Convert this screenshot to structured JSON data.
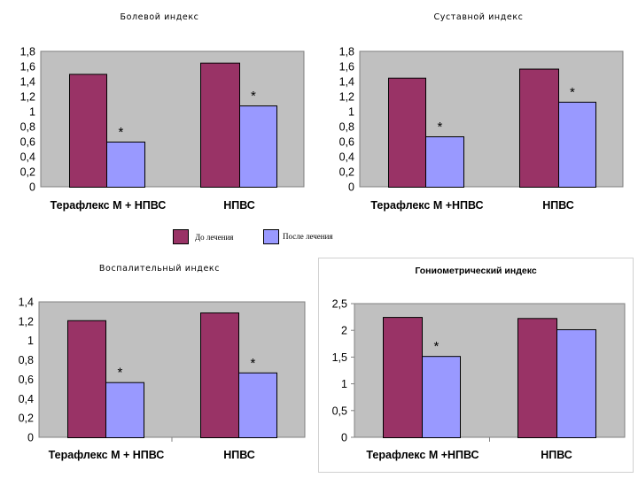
{
  "colors": {
    "before": "#993366",
    "after": "#9999ff",
    "plot_bg": "#c0c0c0",
    "axis": "#808080"
  },
  "legend": {
    "position": "between-top-charts",
    "items": [
      {
        "label": "До лечения",
        "series": "before"
      },
      {
        "label": "После лечения",
        "series": "after"
      }
    ]
  },
  "chart_data": [
    {
      "type": "bar",
      "title": "Болевой индекс",
      "categories": [
        "Терафлекс М + НПВС",
        "НПВС"
      ],
      "series": [
        {
          "name": "До лечения",
          "values": [
            1.5,
            1.65
          ]
        },
        {
          "name": "После лечения",
          "values": [
            0.6,
            1.08
          ]
        }
      ],
      "significance": [
        false,
        false,
        true,
        true
      ],
      "yticks": [
        "0",
        "0,2",
        "0,4",
        "0,6",
        "0,8",
        "1",
        "1,2",
        "1,4",
        "1,6",
        "1,8"
      ],
      "ylim": [
        0,
        1.8
      ],
      "ystep": 0.2,
      "xlabel": "",
      "ylabel": "",
      "grid": false
    },
    {
      "type": "bar",
      "title": "Суставной индекс",
      "categories": [
        "Терафлекс М +НПВС",
        "НПВС"
      ],
      "series": [
        {
          "name": "До лечения",
          "values": [
            1.45,
            1.57
          ]
        },
        {
          "name": "После лечения",
          "values": [
            0.67,
            1.13
          ]
        }
      ],
      "significance": [
        false,
        false,
        true,
        true
      ],
      "yticks": [
        "0",
        "0,2",
        "0,4",
        "0,6",
        "0,8",
        "1",
        "1,2",
        "1,4",
        "1,6",
        "1,8"
      ],
      "ylim": [
        0,
        1.8
      ],
      "ystep": 0.2,
      "xlabel": "",
      "ylabel": "",
      "grid": false
    },
    {
      "type": "bar",
      "title": "Воспалительный индекс",
      "categories": [
        "Терафлекс М + НПВС",
        "НПВС"
      ],
      "series": [
        {
          "name": "До лечения",
          "values": [
            1.21,
            1.29
          ]
        },
        {
          "name": "После лечения",
          "values": [
            0.57,
            0.67
          ]
        }
      ],
      "significance": [
        false,
        false,
        true,
        true
      ],
      "yticks": [
        "0",
        "0,2",
        "0,4",
        "0,6",
        "0,8",
        "1",
        "1,2",
        "1,4"
      ],
      "ylim": [
        0,
        1.4
      ],
      "ystep": 0.2,
      "xlabel": "",
      "ylabel": "",
      "grid": false
    },
    {
      "type": "bar",
      "title": "Гониометрический индекс",
      "categories": [
        "Терафлекс М +НПВС",
        "НПВС"
      ],
      "series": [
        {
          "name": "До лечения",
          "values": [
            2.25,
            2.23
          ]
        },
        {
          "name": "После лечения",
          "values": [
            1.52,
            2.02
          ]
        }
      ],
      "significance": [
        false,
        false,
        true,
        false
      ],
      "yticks": [
        "0",
        "0,5",
        "1",
        "1,5",
        "2",
        "2,5"
      ],
      "ylim": [
        0,
        2.5
      ],
      "ystep": 0.5,
      "xlabel": "",
      "ylabel": "",
      "grid": false
    }
  ]
}
